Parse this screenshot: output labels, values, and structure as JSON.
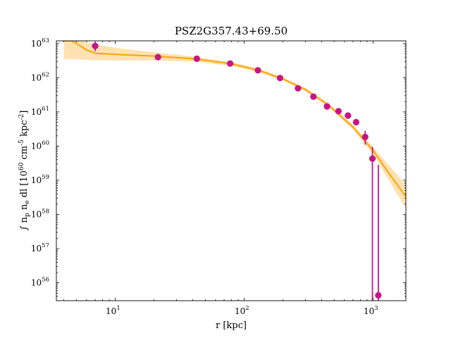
{
  "chart_data": {
    "type": "scatter",
    "title": "PSZ2G357.43+69.50",
    "xlabel": "r [kpc]",
    "ylabel": "∫ n_p n_e dl [10^60 cm^-5 kpc^-2]",
    "x_scale": "log",
    "y_scale": "log",
    "xlim": [
      3.5,
      1800
    ],
    "ylim": [
      3e+55,
      1.2e+63
    ],
    "x_ticks": [
      {
        "value": 10,
        "base": "10",
        "exp": "1"
      },
      {
        "value": 100,
        "base": "10",
        "exp": "2"
      },
      {
        "value": 1000,
        "base": "10",
        "exp": "3"
      }
    ],
    "y_ticks": [
      {
        "value": 1e+56,
        "base": "10",
        "exp": "56"
      },
      {
        "value": 1e+57,
        "base": "10",
        "exp": "57"
      },
      {
        "value": 1e+58,
        "base": "10",
        "exp": "58"
      },
      {
        "value": 1e+59,
        "base": "10",
        "exp": "59"
      },
      {
        "value": 1e+60,
        "base": "10",
        "exp": "60"
      },
      {
        "value": 1e+61,
        "base": "10",
        "exp": "61"
      },
      {
        "value": 1e+62,
        "base": "10",
        "exp": "62"
      },
      {
        "value": 1e+63,
        "base": "10",
        "exp": "63"
      }
    ],
    "grid": false,
    "colors": {
      "points": "#c71585",
      "model": "#ffa500",
      "band": "#ffd9a0"
    },
    "points": [
      {
        "x": 7.0,
        "y": 8.5e+62,
        "yerr": [
          6e+62,
          1.1e+63
        ]
      },
      {
        "x": 21.5,
        "y": 4e+62
      },
      {
        "x": 43.0,
        "y": 3.6e+62
      },
      {
        "x": 78.0,
        "y": 2.6e+62
      },
      {
        "x": 128.0,
        "y": 1.65e+62
      },
      {
        "x": 190.0,
        "y": 9.8e+61
      },
      {
        "x": 262.0,
        "y": 4.9e+61
      },
      {
        "x": 345.0,
        "y": 2.8e+61
      },
      {
        "x": 440.0,
        "y": 1.45e+61
      },
      {
        "x": 540.0,
        "y": 1.05e+61
      },
      {
        "x": 640.0,
        "y": 7.8e+60
      },
      {
        "x": 740.0,
        "y": 5e+60
      },
      {
        "x": 870.0,
        "y": 1.85e+60,
        "yerr": [
          1.1e+60,
          2.8e+60
        ]
      },
      {
        "x": 990.0,
        "y": 4.3e+59,
        "yerr": [
          3e+55,
          9.5e+59
        ]
      },
      {
        "x": 1100.0,
        "y": 4.3e+55,
        "yerr": [
          3e+55,
          2.8e+59
        ]
      }
    ],
    "model": {
      "x": [
        4.0,
        4.6,
        5.0,
        5.5,
        6.0,
        7.0,
        10.0,
        20.0,
        40.0,
        80.0,
        130.0,
        200.0,
        300.0,
        450.0,
        700.0,
        1000.0,
        1300.0,
        1800.0
      ],
      "y": [
        1.2e+63,
        1.2e+63,
        1e+63,
        8e+62,
        6.5e+62,
        5.2e+62,
        4.8e+62,
        4.3e+62,
        3.6e+62,
        2.55e+62,
        1.65e+62,
        9.2e+61,
        4.5e+61,
        1.6e+61,
        3.6e+60,
        7.5e+59,
        1.8e+59,
        3.3e+58
      ],
      "lower": [
        3.5e+62,
        3.5e+62,
        3.5e+62,
        3.4e+62,
        3.3e+62,
        3.2e+62,
        3.2e+62,
        3.2e+62,
        3e+62,
        2.2e+62,
        1.45e+62,
        8.3e+61,
        4e+61,
        1.4e+61,
        3e+60,
        5.8e+59,
        1.15e+59,
        1.5e+58
      ],
      "upper": [
        1.2e+63,
        1.2e+63,
        1.2e+63,
        1.2e+63,
        1.1e+63,
        9.5e+62,
        7.5e+62,
        5.5e+62,
        4.2e+62,
        2.85e+62,
        1.85e+62,
        1.02e+62,
        5e+61,
        1.8e+61,
        4.2e+60,
        9.5e+59,
        3e+59,
        7.5e+58
      ]
    }
  }
}
